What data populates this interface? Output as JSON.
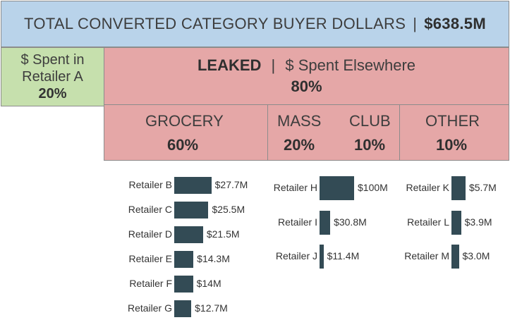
{
  "total": {
    "label": "TOTAL CONVERTED CATEGORY BUYER DOLLARS",
    "value": "$638.5M"
  },
  "retailer_a": {
    "line1": "$ Spent in",
    "line2": "Retailer A",
    "pct": "20%"
  },
  "leaked": {
    "label": "LEAKED",
    "sublabel": "$ Spent Elsewhere",
    "pct": "80%"
  },
  "channels": [
    {
      "name": "GROCERY",
      "pct": "60%"
    },
    {
      "name": "MASS",
      "pct": "20%"
    },
    {
      "name": "CLUB",
      "pct": "10%"
    },
    {
      "name": "OTHER",
      "pct": "10%"
    }
  ],
  "colors": {
    "total_bg": "#b9d3ea",
    "retailer_a_bg": "#c6e0ad",
    "leaked_bg": "#e5a7a7",
    "bar": "#334b55"
  },
  "chart_data": [
    {
      "type": "bar",
      "channel": "GROCERY",
      "categories": [
        "Retailer B",
        "Retailer C",
        "Retailer D",
        "Retailer E",
        "Retailer F",
        "Retailer G"
      ],
      "values": [
        27.7,
        25.5,
        21.5,
        14.3,
        14,
        12.7
      ],
      "labels": [
        "$27.7M",
        "$25.5M",
        "$21.5M",
        "$14.3M",
        "$14M",
        "$12.7M"
      ]
    },
    {
      "type": "bar",
      "channel": "MASS",
      "categories": [
        "Retailer H",
        "Retailer I",
        "Retailer J"
      ],
      "values": [
        100,
        30.8,
        11.4
      ],
      "labels": [
        "$100M",
        "$30.8M",
        "$11.4M"
      ]
    },
    {
      "type": "bar",
      "channel": "OTHER",
      "categories": [
        "Retailer K",
        "Retailer L",
        "Retailer M"
      ],
      "values": [
        5.7,
        3.9,
        3.0
      ],
      "labels": [
        "$5.7M",
        "$3.9M",
        "$3.0M"
      ]
    }
  ]
}
